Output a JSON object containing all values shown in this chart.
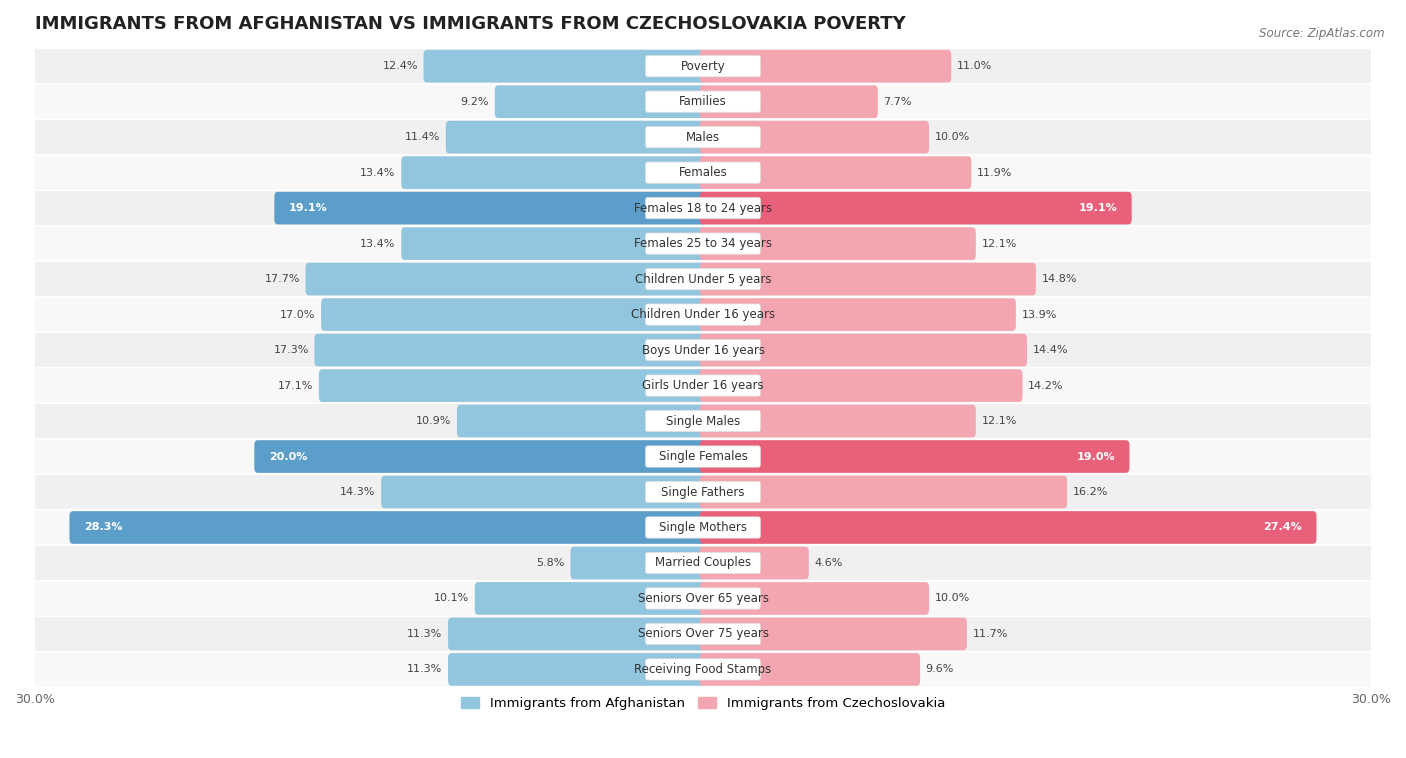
{
  "title": "IMMIGRANTS FROM AFGHANISTAN VS IMMIGRANTS FROM CZECHOSLOVAKIA POVERTY",
  "source": "Source: ZipAtlas.com",
  "categories": [
    "Poverty",
    "Families",
    "Males",
    "Females",
    "Females 18 to 24 years",
    "Females 25 to 34 years",
    "Children Under 5 years",
    "Children Under 16 years",
    "Boys Under 16 years",
    "Girls Under 16 years",
    "Single Males",
    "Single Females",
    "Single Fathers",
    "Single Mothers",
    "Married Couples",
    "Seniors Over 65 years",
    "Seniors Over 75 years",
    "Receiving Food Stamps"
  ],
  "afghanistan": [
    12.4,
    9.2,
    11.4,
    13.4,
    19.1,
    13.4,
    17.7,
    17.0,
    17.3,
    17.1,
    10.9,
    20.0,
    14.3,
    28.3,
    5.8,
    10.1,
    11.3,
    11.3
  ],
  "czechoslovakia": [
    11.0,
    7.7,
    10.0,
    11.9,
    19.1,
    12.1,
    14.8,
    13.9,
    14.4,
    14.2,
    12.1,
    19.0,
    16.2,
    27.4,
    4.6,
    10.0,
    11.7,
    9.6
  ],
  "afghanistan_color": "#92C5DE",
  "czechoslovakia_color": "#F4A6B0",
  "afghanistan_highlight": "#5B9EC9",
  "czechoslovakia_highlight": "#E8607A",
  "highlight_rows": [
    4,
    11,
    13
  ],
  "xlim": 30.0,
  "bar_height": 0.62,
  "bg_color": "#ffffff",
  "row_alt_color": "#f0f0f0",
  "legend_afghanistan": "Immigrants from Afghanistan",
  "legend_czechoslovakia": "Immigrants from Czechoslovakia",
  "title_fontsize": 13,
  "label_fontsize": 8.5,
  "value_fontsize": 8.0
}
